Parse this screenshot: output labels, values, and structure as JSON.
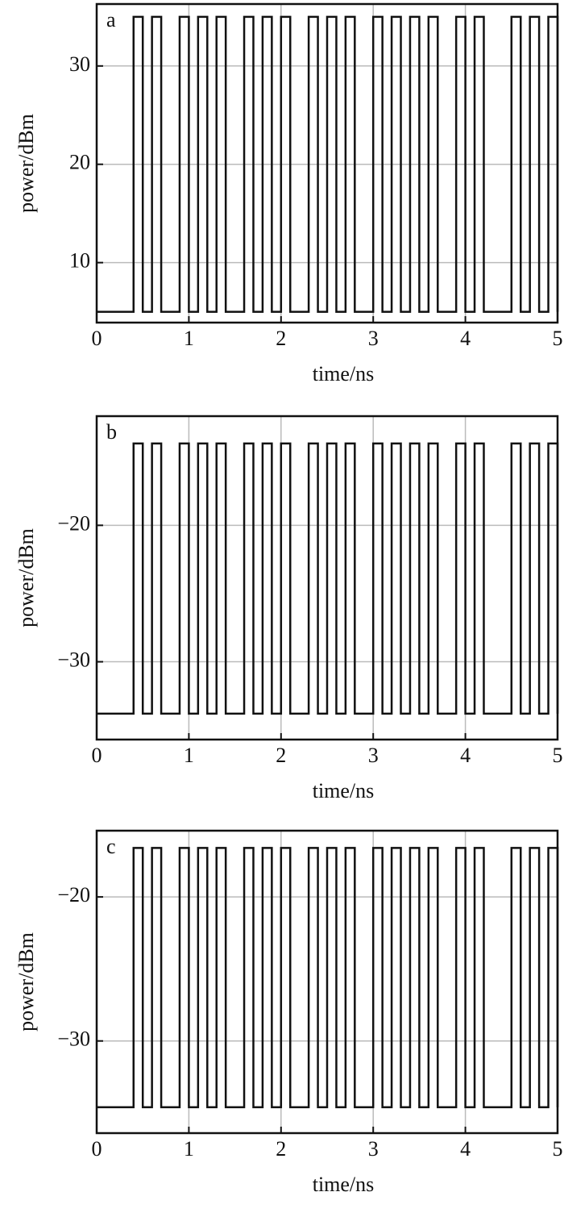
{
  "chart_data": [
    {
      "type": "line",
      "label": "a",
      "xlabel": "time/ns",
      "ylabel": "power/dBm",
      "xlim": [
        0,
        5
      ],
      "xticks": [
        0,
        1,
        2,
        3,
        4,
        5
      ],
      "ylim": [
        3.9,
        36.3
      ],
      "yticks": [
        10,
        20,
        30
      ],
      "grid": true,
      "color": "#111111",
      "x": [
        0,
        0.4,
        0.4,
        0.5,
        0.5,
        0.6,
        0.6,
        0.7,
        0.7,
        0.9,
        0.9,
        1.0,
        1.0,
        1.1,
        1.1,
        1.2,
        1.2,
        1.3,
        1.3,
        1.4,
        1.4,
        1.6,
        1.6,
        1.7,
        1.7,
        1.8,
        1.8,
        1.9,
        1.9,
        2.0,
        2.0,
        2.1,
        2.1,
        2.3,
        2.3,
        2.4,
        2.4,
        2.5,
        2.5,
        2.6,
        2.6,
        2.7,
        2.7,
        2.8,
        2.8,
        3.0,
        3.0,
        3.1,
        3.1,
        3.2,
        3.2,
        3.3,
        3.3,
        3.4,
        3.4,
        3.5,
        3.5,
        3.6,
        3.6,
        3.7,
        3.7,
        3.9,
        3.9,
        4.0,
        4.0,
        4.1,
        4.1,
        4.2,
        4.2,
        4.5,
        4.5,
        4.6,
        4.6,
        4.7,
        4.7,
        4.8,
        4.8,
        4.9,
        4.9,
        5.0,
        5.0
      ],
      "values": [
        5,
        5,
        35,
        35,
        5,
        5,
        35,
        35,
        5,
        5,
        35,
        35,
        5,
        5,
        35,
        35,
        5,
        5,
        35,
        35,
        5,
        5,
        35,
        35,
        5,
        5,
        35,
        35,
        5,
        5,
        35,
        35,
        5,
        5,
        35,
        35,
        5,
        5,
        35,
        35,
        5,
        5,
        35,
        35,
        5,
        5,
        35,
        35,
        5,
        5,
        35,
        35,
        5,
        5,
        35,
        35,
        5,
        5,
        35,
        35,
        5,
        5,
        35,
        35,
        5,
        5,
        35,
        35,
        5,
        5,
        35,
        35,
        5,
        5,
        35,
        35,
        5,
        5,
        35,
        35,
        5
      ]
    },
    {
      "type": "line",
      "label": "b",
      "xlabel": "time/ns",
      "ylabel": "power/dBm",
      "xlim": [
        0,
        5
      ],
      "xticks": [
        0,
        1,
        2,
        3,
        4,
        5
      ],
      "ylim": [
        -35.7,
        -12
      ],
      "yticks": [
        {
          "value": -20,
          "label": "−20"
        },
        {
          "value": -30,
          "label": "−30"
        }
      ],
      "grid": true,
      "color": "#111111",
      "x": [
        0,
        0.4,
        0.4,
        0.5,
        0.5,
        0.6,
        0.6,
        0.7,
        0.7,
        0.9,
        0.9,
        1.0,
        1.0,
        1.1,
        1.1,
        1.2,
        1.2,
        1.3,
        1.3,
        1.4,
        1.4,
        1.6,
        1.6,
        1.7,
        1.7,
        1.8,
        1.8,
        1.9,
        1.9,
        2.0,
        2.0,
        2.1,
        2.1,
        2.3,
        2.3,
        2.4,
        2.4,
        2.5,
        2.5,
        2.6,
        2.6,
        2.7,
        2.7,
        2.8,
        2.8,
        3.0,
        3.0,
        3.1,
        3.1,
        3.2,
        3.2,
        3.3,
        3.3,
        3.4,
        3.4,
        3.5,
        3.5,
        3.6,
        3.6,
        3.7,
        3.7,
        3.9,
        3.9,
        4.0,
        4.0,
        4.1,
        4.1,
        4.2,
        4.2,
        4.5,
        4.5,
        4.6,
        4.6,
        4.7,
        4.7,
        4.8,
        4.8,
        4.9,
        4.9,
        5.0,
        5.0
      ],
      "values": [
        -33.8,
        -33.8,
        -14,
        -14,
        -33.8,
        -33.8,
        -14,
        -14,
        -33.8,
        -33.8,
        -14,
        -14,
        -33.8,
        -33.8,
        -14,
        -14,
        -33.8,
        -33.8,
        -14,
        -14,
        -33.8,
        -33.8,
        -14,
        -14,
        -33.8,
        -33.8,
        -14,
        -14,
        -33.8,
        -33.8,
        -14,
        -14,
        -33.8,
        -33.8,
        -14,
        -14,
        -33.8,
        -33.8,
        -14,
        -14,
        -33.8,
        -33.8,
        -14,
        -14,
        -33.8,
        -33.8,
        -14,
        -14,
        -33.8,
        -33.8,
        -14,
        -14,
        -33.8,
        -33.8,
        -14,
        -14,
        -33.8,
        -33.8,
        -14,
        -14,
        -33.8,
        -33.8,
        -14,
        -14,
        -33.8,
        -33.8,
        -14,
        -14,
        -33.8,
        -33.8,
        -14,
        -14,
        -33.8,
        -33.8,
        -14,
        -14,
        -33.8,
        -33.8,
        -14,
        -14,
        -33.8
      ]
    },
    {
      "type": "line",
      "label": "c",
      "xlabel": "time/ns",
      "ylabel": "power/dBm",
      "xlim": [
        0,
        5
      ],
      "xticks": [
        0,
        1,
        2,
        3,
        4,
        5
      ],
      "ylim": [
        -36.4,
        -15.4
      ],
      "yticks": [
        {
          "value": -20,
          "label": "−20"
        },
        {
          "value": -30,
          "label": "−30"
        }
      ],
      "grid": true,
      "color": "#111111",
      "x": [
        0,
        0.4,
        0.4,
        0.5,
        0.5,
        0.6,
        0.6,
        0.7,
        0.7,
        0.9,
        0.9,
        1.0,
        1.0,
        1.1,
        1.1,
        1.2,
        1.2,
        1.3,
        1.3,
        1.4,
        1.4,
        1.6,
        1.6,
        1.7,
        1.7,
        1.8,
        1.8,
        1.9,
        1.9,
        2.0,
        2.0,
        2.1,
        2.1,
        2.3,
        2.3,
        2.4,
        2.4,
        2.5,
        2.5,
        2.6,
        2.6,
        2.7,
        2.7,
        2.8,
        2.8,
        3.0,
        3.0,
        3.1,
        3.1,
        3.2,
        3.2,
        3.3,
        3.3,
        3.4,
        3.4,
        3.5,
        3.5,
        3.6,
        3.6,
        3.7,
        3.7,
        3.9,
        3.9,
        4.0,
        4.0,
        4.1,
        4.1,
        4.2,
        4.2,
        4.5,
        4.5,
        4.6,
        4.6,
        4.7,
        4.7,
        4.8,
        4.8,
        4.9,
        4.9,
        5.0,
        5.0
      ],
      "values": [
        -34.6,
        -34.6,
        -16.6,
        -16.6,
        -34.6,
        -34.6,
        -16.6,
        -16.6,
        -34.6,
        -34.6,
        -16.6,
        -16.6,
        -34.6,
        -34.6,
        -16.6,
        -16.6,
        -34.6,
        -34.6,
        -16.6,
        -16.6,
        -34.6,
        -34.6,
        -16.6,
        -16.6,
        -34.6,
        -34.6,
        -16.6,
        -16.6,
        -34.6,
        -34.6,
        -16.6,
        -16.6,
        -34.6,
        -34.6,
        -16.6,
        -16.6,
        -34.6,
        -34.6,
        -16.6,
        -16.6,
        -34.6,
        -34.6,
        -16.6,
        -16.6,
        -34.6,
        -34.6,
        -16.6,
        -16.6,
        -34.6,
        -34.6,
        -16.6,
        -16.6,
        -34.6,
        -34.6,
        -16.6,
        -16.6,
        -34.6,
        -34.6,
        -16.6,
        -16.6,
        -34.6,
        -34.6,
        -16.6,
        -16.6,
        -34.6,
        -34.6,
        -16.6,
        -16.6,
        -34.6,
        -34.6,
        -16.6,
        -16.6,
        -34.6,
        -34.6,
        -16.6,
        -16.6,
        -34.6,
        -34.6,
        -16.6,
        -16.6,
        -34.6
      ]
    }
  ]
}
